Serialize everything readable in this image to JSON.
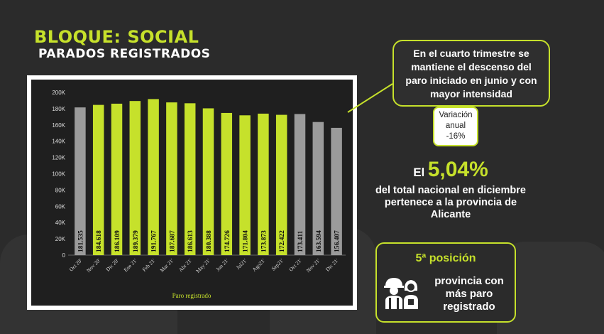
{
  "header": {
    "title": "BLOQUE: SOCIAL",
    "subtitle": "PARADOS REGISTRADOS"
  },
  "callout": {
    "text": "En el cuarto trimestre se mantiene el descenso del paro iniciado en junio y con mayor intensidad"
  },
  "variation": {
    "label": "Variación anual",
    "value": "-16%"
  },
  "stat": {
    "prefix": "El",
    "value": "5,04%",
    "description": "del total nacional en diciembre pertenece a la provincia de Alicante"
  },
  "ranking": {
    "position": "5ª posición",
    "icon": "workers-icon",
    "description": "provincia con más paro registrado"
  },
  "colors": {
    "accent": "#c6e12b",
    "gray_bar": "#9b9b9b",
    "highlight_bar": "#c6e12b"
  },
  "chart_data": {
    "type": "bar",
    "categories": [
      "Oct 20'",
      "Nov 20'",
      "Dic 20'",
      "Ene 21'",
      "Feb 21'",
      "Mar 21'",
      "Abr 21'",
      "May 21'",
      "Jun 21'",
      "Jul21'",
      "Ago21'",
      "Sep21'",
      "Oct 21'",
      "Nov 21'",
      "Dic 21'"
    ],
    "values": [
      181535,
      184618,
      186109,
      189379,
      191767,
      187687,
      186613,
      180388,
      174726,
      171804,
      173873,
      172422,
      173411,
      163594,
      156407
    ],
    "labels": [
      "181.535",
      "184.618",
      "186.109",
      "189.379",
      "191.767",
      "187.687",
      "186.613",
      "180.388",
      "174.726",
      "171.804",
      "173.873",
      "172.422",
      "173.411",
      "163.594",
      "156.407"
    ],
    "highlight": [
      false,
      true,
      true,
      true,
      true,
      true,
      true,
      true,
      true,
      true,
      true,
      true,
      false,
      false,
      false
    ],
    "xlabel": "Paro registrado",
    "ylabel": "",
    "ylim": [
      0,
      200000
    ],
    "yticks": [
      "0",
      "20K",
      "40K",
      "60K",
      "80K",
      "100K",
      "120K",
      "140K",
      "160K",
      "180K",
      "200K"
    ]
  }
}
